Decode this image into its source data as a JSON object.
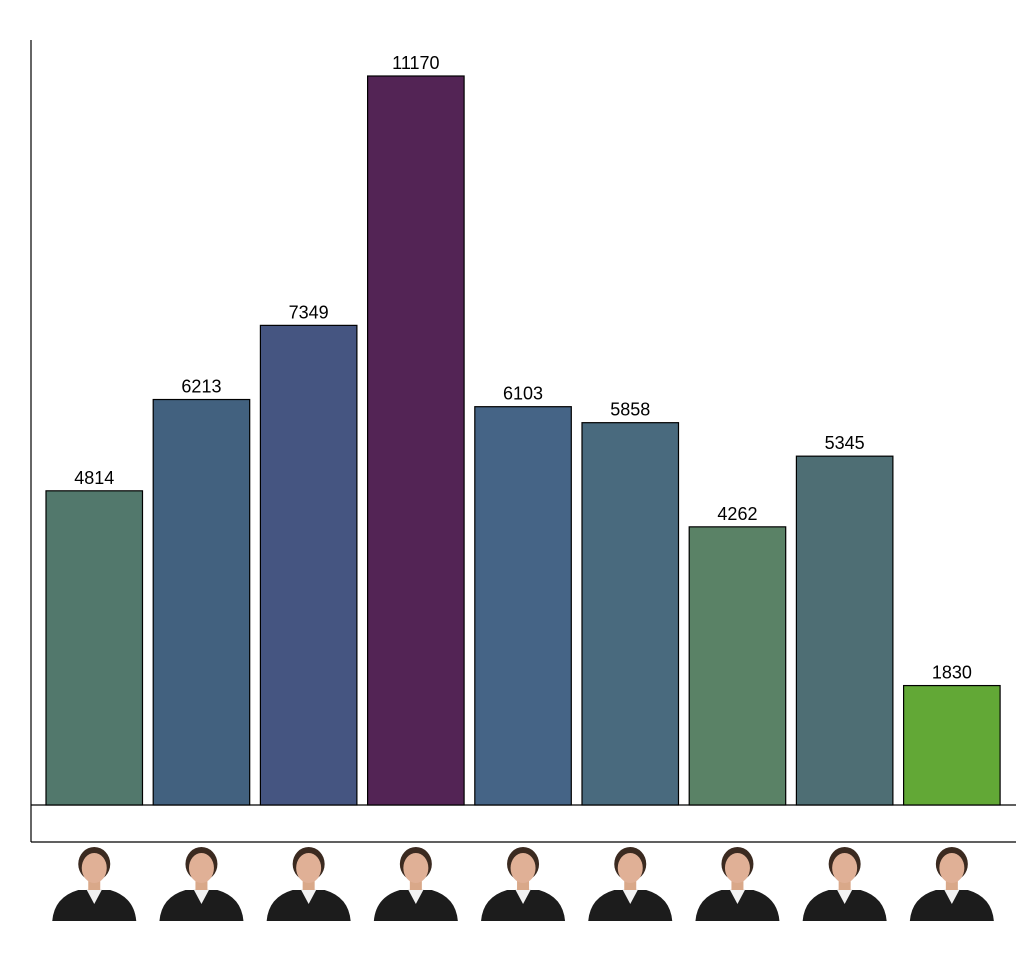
{
  "chart_data": {
    "type": "bar",
    "categories": [
      "",
      "",
      "",
      "",
      "",
      "",
      "",
      "",
      ""
    ],
    "values": [
      4814,
      6213,
      7349,
      11170,
      6103,
      5858,
      4262,
      5345,
      1830
    ],
    "bar_colors": [
      "#52786C",
      "#42617F",
      "#455581",
      "#532455",
      "#456486",
      "#496A7E",
      "#5A8266",
      "#4E6E74",
      "#62A836"
    ],
    "portrait_robe_colors": [
      "#1c1c1c",
      "#1c1c1c",
      "#1c1c1c",
      "#1c1c1c",
      "#1c1c1c",
      "#1c1c1c",
      "#1c1c1c",
      "#1c1c1c",
      "#1c1c1c"
    ],
    "xlabel": "",
    "ylabel": "",
    "title": "",
    "ylim": [
      0,
      11500
    ],
    "grid": false,
    "legend": "none",
    "x_tick_labels": "portrait-icons"
  }
}
